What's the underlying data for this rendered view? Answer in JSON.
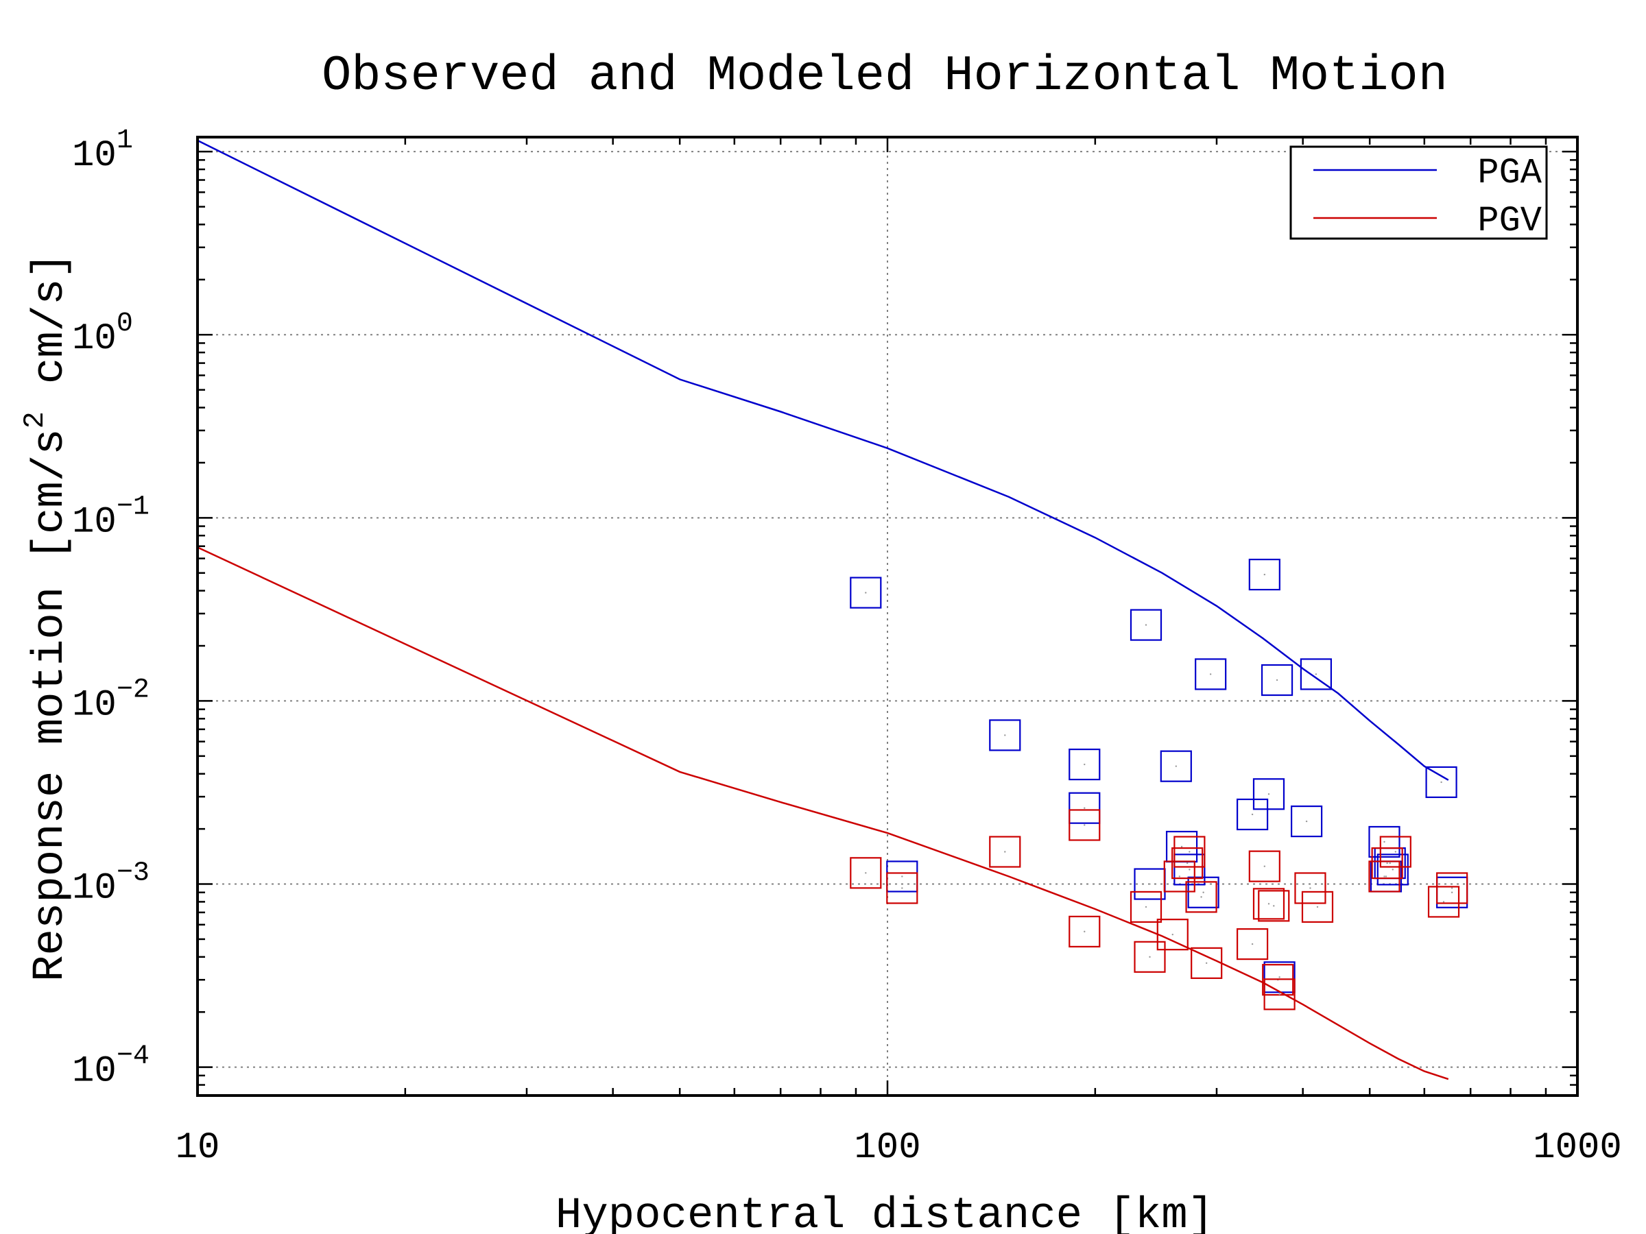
{
  "chart_data": {
    "type": "scatter",
    "title": "Observed and Modeled Horizontal Motion",
    "xlabel": "Hypocentral distance [km]",
    "ylabel": "Response motion [cm/s",
    "ylabel_superscript": "2",
    "ylabel_tail": "cm/s]",
    "x_scale": "log",
    "y_scale": "log",
    "xlim": [
      10,
      1000
    ],
    "ylim": [
      7e-05,
      12
    ],
    "grid": true,
    "legend_position": "top-right",
    "x_ticks": [
      {
        "value": 10,
        "label": "10"
      },
      {
        "value": 100,
        "label": "100"
      },
      {
        "value": 1000,
        "label": "1000"
      }
    ],
    "y_ticks": [
      {
        "value": 0.0001,
        "base": "10",
        "exp": "−4"
      },
      {
        "value": 0.001,
        "base": "10",
        "exp": "−3"
      },
      {
        "value": 0.01,
        "base": "10",
        "exp": "−2"
      },
      {
        "value": 0.1,
        "base": "10",
        "exp": "−1"
      },
      {
        "value": 1,
        "base": "10",
        "exp": "0"
      },
      {
        "value": 10,
        "base": "10",
        "exp": "1"
      }
    ],
    "series": [
      {
        "name": "PGA",
        "color": "#0000cc",
        "line": {
          "x": [
            10,
            50,
            70,
            100,
            150,
            200,
            250,
            300,
            350,
            400,
            450,
            500,
            550,
            600,
            650
          ],
          "y": [
            11.5,
            0.57,
            0.38,
            0.24,
            0.13,
            0.078,
            0.05,
            0.033,
            0.022,
            0.015,
            0.011,
            0.0078,
            0.0058,
            0.0044,
            0.0037
          ]
        },
        "observed": {
          "x": [
            93,
            105,
            148,
            193,
            193,
            237,
            240,
            262,
            267,
            274,
            287,
            294,
            338,
            352,
            357,
            367,
            370,
            405,
            418,
            525,
            528,
            535,
            540,
            635,
            658
          ],
          "y": [
            0.039,
            0.0011,
            0.0065,
            0.0045,
            0.0026,
            0.026,
            0.001,
            0.0044,
            0.0016,
            0.0012,
            0.0009,
            0.014,
            0.0024,
            0.049,
            0.0031,
            0.013,
            0.00031,
            0.0022,
            0.014,
            0.0017,
            0.0011,
            0.0013,
            0.0012,
            0.0036,
            0.0009
          ]
        }
      },
      {
        "name": "PGV",
        "color": "#cc0000",
        "line": {
          "x": [
            10,
            50,
            70,
            100,
            150,
            200,
            250,
            300,
            350,
            400,
            450,
            500,
            550,
            600,
            650
          ],
          "y": [
            0.069,
            0.0041,
            0.0028,
            0.0019,
            0.0011,
            0.00073,
            0.00052,
            0.00038,
            0.00029,
            0.00022,
            0.00017,
            0.000135,
            0.000111,
            9.5e-05,
            8.6e-05
          ]
        },
        "observed": {
          "x": [
            93,
            105,
            148,
            193,
            193,
            237,
            240,
            259,
            265,
            272,
            274,
            285,
            290,
            338,
            352,
            357,
            363,
            368,
            370,
            410,
            420,
            525,
            530,
            545,
            640,
            658
          ],
          "y": [
            0.00115,
            0.00095,
            0.0015,
            0.0021,
            0.00055,
            0.00075,
            0.0004,
            0.00053,
            0.0011,
            0.0013,
            0.0015,
            0.00085,
            0.00037,
            0.00047,
            0.00125,
            0.00078,
            0.00076,
            0.0003,
            0.00025,
            0.00095,
            0.00075,
            0.0011,
            0.0013,
            0.0015,
            0.0008,
            0.00095
          ]
        }
      }
    ]
  }
}
